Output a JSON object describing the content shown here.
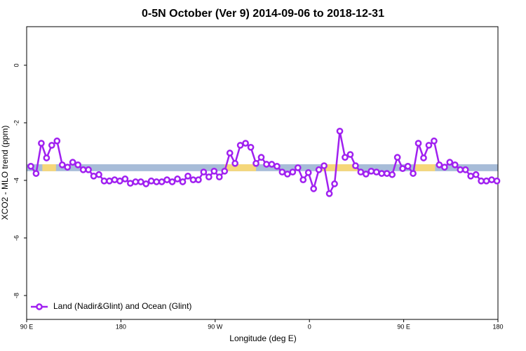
{
  "chart_data": {
    "type": "line",
    "title": "0-5N October (Ver 9)   2014-09-06 to 2018-12-31",
    "x_label": "Longitude (deg E)",
    "y_label": "XCO2 - MLO trend (ppm)",
    "xlim": [
      90,
      540
    ],
    "ylim": [
      -8.83,
      1.34
    ],
    "xticks": [
      {
        "value": 90,
        "label": "90 E"
      },
      180,
      {
        "value": 270,
        "label": "90 W"
      },
      {
        "value": 360,
        "label": "0"
      },
      {
        "value": 450,
        "label": "90 E"
      },
      {
        "value": 540,
        "label": "180"
      }
    ],
    "yticks": [
      0,
      -2,
      -4,
      -6,
      -8
    ],
    "legend_position": "bottom left",
    "band": {
      "bottom": -3.68,
      "top": -3.44,
      "color": "#a7bcd8",
      "segments": [
        {
          "start": 105,
          "end": 118,
          "color": "#f5d77a"
        },
        {
          "start": 279,
          "end": 309,
          "color": "#f5d77a"
        },
        {
          "start": 371,
          "end": 406,
          "color": "#f5d77a"
        },
        {
          "start": 461,
          "end": 480,
          "color": "#f5d77a"
        }
      ]
    },
    "x": [
      94,
      99,
      104,
      109,
      114,
      119,
      124,
      129,
      134,
      139,
      144,
      149,
      154,
      159,
      164,
      169,
      174,
      179,
      184,
      189,
      194,
      199,
      204,
      209,
      214,
      219,
      224,
      229,
      234,
      239,
      244,
      249,
      254,
      259,
      264,
      269,
      274,
      279,
      284,
      289,
      294,
      299,
      304,
      309,
      314,
      319,
      324,
      329,
      334,
      339,
      344,
      349,
      354,
      359,
      364,
      369,
      374,
      379,
      384,
      389,
      394,
      399,
      404,
      409,
      414,
      419,
      424,
      429,
      434,
      439,
      444,
      449,
      454,
      459,
      464,
      469,
      474,
      479,
      484,
      489,
      494,
      499,
      504,
      509,
      514,
      519,
      524,
      529,
      534,
      539
    ],
    "series": [
      {
        "name": "Land (Nadir&Glint) and Ocean (Glint)",
        "color": "#a020f0",
        "values": [
          -3.51,
          -3.76,
          -2.71,
          -3.22,
          -2.78,
          -2.63,
          -3.46,
          -3.54,
          -3.37,
          -3.46,
          -3.63,
          -3.63,
          -3.85,
          -3.8,
          -4.02,
          -4.02,
          -3.98,
          -4.02,
          -3.95,
          -4.1,
          -4.05,
          -4.05,
          -4.12,
          -4.02,
          -4.05,
          -4.05,
          -3.98,
          -4.05,
          -3.95,
          -4.05,
          -3.85,
          -3.98,
          -3.98,
          -3.71,
          -3.88,
          -3.68,
          -3.88,
          -3.68,
          -3.05,
          -3.41,
          -2.78,
          -2.71,
          -2.85,
          -3.41,
          -3.2,
          -3.44,
          -3.44,
          -3.51,
          -3.71,
          -3.78,
          -3.71,
          -3.56,
          -3.98,
          -3.73,
          -4.29,
          -3.63,
          -3.49,
          -4.46,
          -4.12,
          -2.29,
          -3.2,
          -3.1,
          -3.49,
          -3.71,
          -3.78,
          -3.68,
          -3.71,
          -3.76,
          -3.76,
          -3.8,
          -3.2,
          -3.59,
          -3.51,
          -3.76,
          -2.71,
          -3.22,
          -2.78,
          -2.63,
          -3.46,
          -3.54,
          -3.37,
          -3.46,
          -3.63,
          -3.63,
          -3.85,
          -3.8,
          -4.02,
          -4.02,
          -3.98,
          -4.02
        ]
      }
    ]
  }
}
